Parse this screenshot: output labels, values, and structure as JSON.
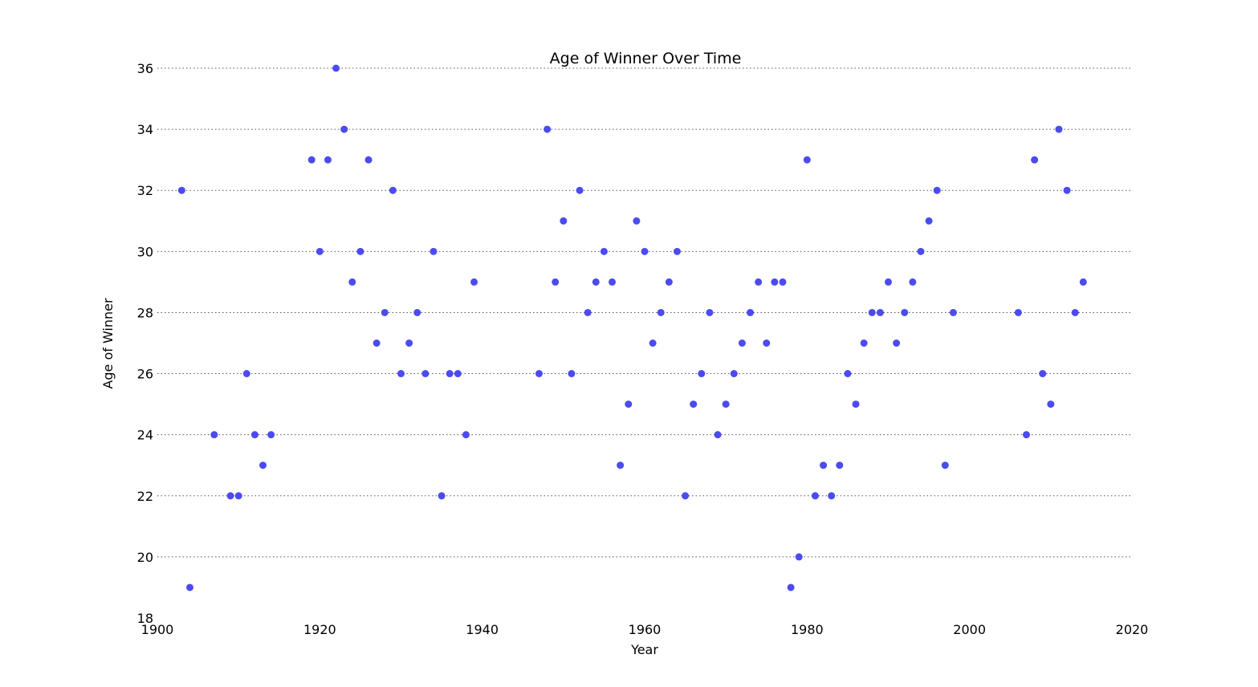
{
  "chart_data": {
    "type": "scatter",
    "title": "Age of Winner Over Time",
    "xlabel": "Year",
    "ylabel": "Age of Winner",
    "xlim": [
      1900,
      2020
    ],
    "ylim": [
      18,
      36
    ],
    "x_ticks": [
      1900,
      1920,
      1940,
      1960,
      1980,
      2000,
      2020
    ],
    "y_ticks": [
      18,
      20,
      22,
      24,
      26,
      28,
      30,
      32,
      34,
      36
    ],
    "grid": "horizontal-dotted",
    "marker_color": "#4b4bef",
    "points": [
      [
        1903,
        32
      ],
      [
        1904,
        19
      ],
      [
        1907,
        24
      ],
      [
        1909,
        22
      ],
      [
        1910,
        22
      ],
      [
        1911,
        26
      ],
      [
        1912,
        24
      ],
      [
        1913,
        23
      ],
      [
        1914,
        24
      ],
      [
        1919,
        33
      ],
      [
        1920,
        30
      ],
      [
        1921,
        33
      ],
      [
        1922,
        36
      ],
      [
        1923,
        34
      ],
      [
        1924,
        29
      ],
      [
        1925,
        30
      ],
      [
        1926,
        33
      ],
      [
        1927,
        27
      ],
      [
        1928,
        28
      ],
      [
        1929,
        32
      ],
      [
        1930,
        26
      ],
      [
        1931,
        27
      ],
      [
        1932,
        28
      ],
      [
        1933,
        26
      ],
      [
        1934,
        30
      ],
      [
        1935,
        22
      ],
      [
        1936,
        26
      ],
      [
        1937,
        26
      ],
      [
        1938,
        24
      ],
      [
        1939,
        29
      ],
      [
        1947,
        26
      ],
      [
        1948,
        34
      ],
      [
        1949,
        29
      ],
      [
        1950,
        31
      ],
      [
        1951,
        26
      ],
      [
        1952,
        32
      ],
      [
        1953,
        28
      ],
      [
        1954,
        29
      ],
      [
        1955,
        30
      ],
      [
        1956,
        29
      ],
      [
        1957,
        23
      ],
      [
        1958,
        25
      ],
      [
        1959,
        31
      ],
      [
        1960,
        30
      ],
      [
        1961,
        27
      ],
      [
        1962,
        28
      ],
      [
        1963,
        29
      ],
      [
        1964,
        30
      ],
      [
        1965,
        22
      ],
      [
        1966,
        25
      ],
      [
        1967,
        26
      ],
      [
        1968,
        28
      ],
      [
        1969,
        24
      ],
      [
        1970,
        25
      ],
      [
        1971,
        26
      ],
      [
        1972,
        27
      ],
      [
        1973,
        28
      ],
      [
        1974,
        29
      ],
      [
        1975,
        27
      ],
      [
        1976,
        29
      ],
      [
        1977,
        29
      ],
      [
        1978,
        19
      ],
      [
        1979,
        20
      ],
      [
        1980,
        33
      ],
      [
        1981,
        22
      ],
      [
        1982,
        23
      ],
      [
        1983,
        22
      ],
      [
        1984,
        23
      ],
      [
        1985,
        26
      ],
      [
        1986,
        25
      ],
      [
        1987,
        27
      ],
      [
        1988,
        28
      ],
      [
        1989,
        28
      ],
      [
        1990,
        29
      ],
      [
        1991,
        27
      ],
      [
        1992,
        28
      ],
      [
        1993,
        29
      ],
      [
        1994,
        30
      ],
      [
        1995,
        31
      ],
      [
        1996,
        32
      ],
      [
        1997,
        23
      ],
      [
        1998,
        28
      ],
      [
        2006,
        28
      ],
      [
        2007,
        24
      ],
      [
        2008,
        33
      ],
      [
        2009,
        26
      ],
      [
        2010,
        25
      ],
      [
        2011,
        34
      ],
      [
        2012,
        32
      ],
      [
        2013,
        28
      ],
      [
        2014,
        29
      ]
    ]
  }
}
